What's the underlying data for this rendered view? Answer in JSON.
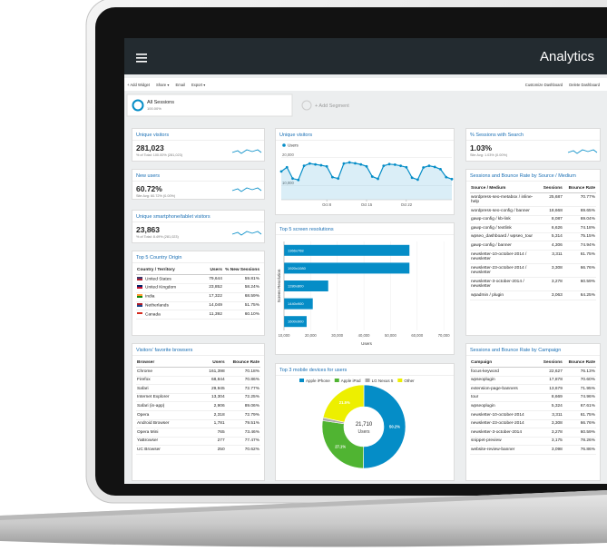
{
  "header": {
    "title": "Analytics"
  },
  "toolbar": {
    "left": [
      "+ Add Widget",
      "Share ▾",
      "Email",
      "Export ▾"
    ],
    "right": [
      "Customize Dashboard",
      "Delete Dashboard"
    ]
  },
  "segments": {
    "active": {
      "name": "All Sessions",
      "share": "100.00%"
    },
    "add": "+ Add Segment"
  },
  "scorecards": [
    {
      "title": "Unique visitors",
      "value": "281,023",
      "note": "% of Total: 100.00% (281,023)"
    },
    {
      "title": "New users",
      "value": "60.72%",
      "note": "Site Avg: 60.72% (0.00%)"
    },
    {
      "title": "Unique smartphone/tablet visitors",
      "value": "23,863",
      "note": "% of Total: 8.49% (281,023)"
    },
    {
      "title": "% Sessions with Search",
      "value": "1.03%",
      "note": "Site Avg: 1.03% (0.00%)"
    }
  ],
  "tables": [
    {
      "title": "Top 5 Country Origin",
      "columns": [
        "Country / Territory",
        "Users",
        "% New Sessions"
      ],
      "rows": [
        [
          "United States",
          "79,644",
          "59.81%"
        ],
        [
          "United Kingdom",
          "23,852",
          "58.24%"
        ],
        [
          "India",
          "17,322",
          "68.59%"
        ],
        [
          "Netherlands",
          "14,049",
          "51.75%"
        ],
        [
          "Canada",
          "11,392",
          "60.10%"
        ]
      ]
    },
    {
      "title": "Visitors' favorite browsers",
      "columns": [
        "Browser",
        "Users",
        "Bounce Rate"
      ],
      "rows": [
        [
          "Chrome",
          "161,398",
          "70.18%"
        ],
        [
          "Firefox",
          "68,844",
          "70.86%"
        ],
        [
          "Safari",
          "29,945",
          "72.77%"
        ],
        [
          "Internet Explorer",
          "13,304",
          "72.25%"
        ],
        [
          "Safari (in-app)",
          "2,906",
          "89.06%"
        ],
        [
          "Opera",
          "2,318",
          "72.79%"
        ],
        [
          "Android Browser",
          "1,781",
          "79.51%"
        ],
        [
          "Opera Mini",
          "765",
          "73.46%"
        ],
        [
          "YaBrowser",
          "277",
          "77.47%"
        ],
        [
          "UC Browser",
          "250",
          "70.62%"
        ]
      ]
    },
    {
      "title": "Sessions and Bounce Rate by Source / Medium",
      "columns": [
        "Source / Medium",
        "Sessions",
        "Bounce Rate"
      ],
      "rows": [
        [
          "wordpress-seo-metabox / inline-help",
          "25,687",
          "70.77%"
        ],
        [
          "wordpress-seo-config / banner",
          "18,668",
          "69.65%"
        ],
        [
          "gawp-config / kb-link",
          "8,087",
          "69.04%"
        ],
        [
          "gawp-config / textlink",
          "6,626",
          "74.18%"
        ],
        [
          "wpseo_dashboard / wpseo_tour",
          "5,314",
          "75.15%"
        ],
        [
          "gawp-config / banner",
          "4,306",
          "74.94%"
        ],
        [
          "newsletter-10-october-2014 / newsletter",
          "3,311",
          "61.75%"
        ],
        [
          "newsletter-23-october-2014 / newsletter",
          "3,308",
          "66.76%"
        ],
        [
          "newsletter-3-october-2014 / newsletter",
          "3,278",
          "60.59%"
        ],
        [
          "wpadmin / plugin",
          "3,063",
          "64.25%"
        ]
      ]
    },
    {
      "title": "Sessions and Bounce Rate by Campaign",
      "columns": [
        "Campaign",
        "Sessions",
        "Bounce Rate"
      ],
      "rows": [
        [
          "focus-keyword",
          "22,627",
          "76.13%"
        ],
        [
          "wpseoplugin",
          "17,878",
          "70.60%"
        ],
        [
          "extension-page-banners",
          "13,679",
          "71.95%"
        ],
        [
          "tour",
          "8,669",
          "74.96%"
        ],
        [
          "wpseoplugin",
          "5,324",
          "67.61%"
        ],
        [
          "newsletter-10-october-2014",
          "3,311",
          "61.75%"
        ],
        [
          "newsletter-23-october-2014",
          "3,308",
          "66.76%"
        ],
        [
          "newsletter-3-october-2014",
          "3,278",
          "60.59%"
        ],
        [
          "snippet-preview",
          "3,175",
          "78.26%"
        ],
        [
          "website-review-banner",
          "3,098",
          "76.86%"
        ]
      ]
    }
  ],
  "chart_data": [
    {
      "type": "line",
      "title": "Unique visitors",
      "categories": [
        null,
        null,
        null,
        null,
        null,
        null,
        null,
        null,
        "Oct 8",
        null,
        null,
        null,
        null,
        null,
        null,
        "Oct 15",
        null,
        null,
        null,
        null,
        null,
        null,
        "Oct 22",
        null,
        null,
        null,
        null,
        null,
        null,
        null,
        null
      ],
      "series": [
        {
          "name": "Users",
          "color": "#058dc7",
          "values": [
            15000,
            16500,
            12500,
            12000,
            17000,
            17800,
            17500,
            17200,
            16800,
            13000,
            12500,
            17800,
            18200,
            17900,
            17500,
            16800,
            13200,
            12400,
            17000,
            17600,
            17400,
            17000,
            16500,
            12800,
            12100,
            16400,
            17000,
            16600,
            15800,
            13000,
            12300
          ]
        }
      ],
      "ylim": [
        5000,
        23000
      ],
      "yticks": [
        {
          "value": 10000,
          "label": "10,000"
        },
        {
          "value": 20000,
          "label": "20,000"
        }
      ]
    },
    {
      "type": "hbar",
      "title": "Top 5 screen resolutions",
      "xlabel": "Users",
      "ylabel": "Screen Resolution",
      "categories": [
        "1366x768",
        "1920x1080",
        "1280x800",
        "1440x900",
        "1600x900"
      ],
      "values": [
        57100,
        57100,
        26600,
        20800,
        18500
      ],
      "color": "#058dc7",
      "xlim": [
        10000,
        72000
      ],
      "xticks": [
        {
          "value": 10000,
          "label": "10,000"
        },
        {
          "value": 20000,
          "label": "20,000"
        },
        {
          "value": 30000,
          "label": "30,000"
        },
        {
          "value": 40000,
          "label": "40,000"
        },
        {
          "value": 50000,
          "label": "50,000"
        },
        {
          "value": 60000,
          "label": "60,000"
        },
        {
          "value": 70000,
          "label": "70,000"
        }
      ]
    },
    {
      "type": "pie",
      "title": "Top 3 mobile devices for users",
      "total_label": "21,710",
      "total_caption": "Users",
      "categories": [
        "Apple iPhone",
        "Apple iPad",
        "LG Nexus 5",
        "Other"
      ],
      "values": [
        50.2,
        27.1,
        1.2,
        21.5
      ],
      "value_labels": [
        "50.2%",
        "27.1%",
        null,
        "21.5%"
      ],
      "colors": [
        "#058dc7",
        "#50b432",
        "#aaaaaa",
        "#edef00"
      ]
    }
  ]
}
